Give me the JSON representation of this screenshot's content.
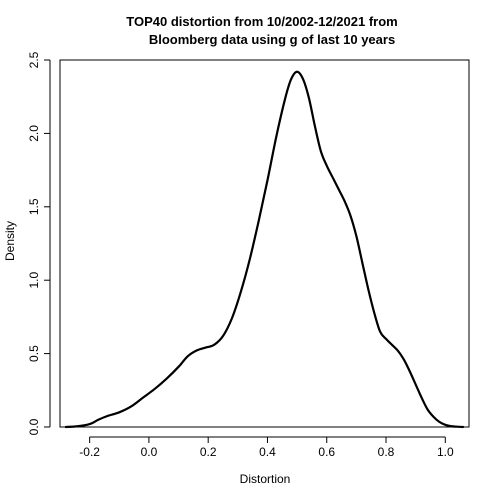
{
  "chart_data": {
    "type": "line",
    "title_lines": [
      "TOP40 distortion from 10/2002-12/2021 from",
      "Bloomberg data using g of last 10 years"
    ],
    "xlabel": "Distortion",
    "ylabel": "Density",
    "xlim": [
      -0.3,
      1.08
    ],
    "ylim": [
      0,
      2.5
    ],
    "x_ticks": [
      -0.2,
      0.0,
      0.2,
      0.4,
      0.6,
      0.8,
      1.0
    ],
    "x_tick_labels": [
      "-0.2",
      "0.0",
      "0.2",
      "0.4",
      "0.6",
      "0.8",
      "1.0"
    ],
    "y_ticks": [
      0.0,
      0.5,
      1.0,
      1.5,
      2.0,
      2.5
    ],
    "y_tick_labels": [
      "0.0",
      "0.5",
      "1.0",
      "1.5",
      "2.0",
      "2.5"
    ],
    "grid": false,
    "legend": "none",
    "line_color": "#000000",
    "series": [
      {
        "x": [
          -0.28,
          -0.24,
          -0.2,
          -0.17,
          -0.14,
          -0.1,
          -0.06,
          -0.02,
          0.02,
          0.06,
          0.1,
          0.13,
          0.16,
          0.19,
          0.22,
          0.25,
          0.28,
          0.31,
          0.34,
          0.37,
          0.4,
          0.43,
          0.46,
          0.48,
          0.5,
          0.52,
          0.54,
          0.56,
          0.58,
          0.6,
          0.62,
          0.64,
          0.66,
          0.68,
          0.7,
          0.72,
          0.74,
          0.76,
          0.78,
          0.8,
          0.82,
          0.84,
          0.86,
          0.88,
          0.9,
          0.92,
          0.94,
          0.96,
          0.98,
          1.0,
          1.02,
          1.04,
          1.06
        ],
        "y": [
          0.0,
          0.005,
          0.02,
          0.05,
          0.075,
          0.1,
          0.14,
          0.2,
          0.26,
          0.33,
          0.41,
          0.48,
          0.52,
          0.54,
          0.56,
          0.62,
          0.74,
          0.92,
          1.14,
          1.4,
          1.68,
          1.98,
          2.24,
          2.37,
          2.42,
          2.37,
          2.24,
          2.05,
          1.88,
          1.78,
          1.7,
          1.62,
          1.54,
          1.44,
          1.3,
          1.12,
          0.94,
          0.78,
          0.65,
          0.6,
          0.56,
          0.52,
          0.46,
          0.38,
          0.29,
          0.2,
          0.12,
          0.07,
          0.035,
          0.015,
          0.005,
          0.002,
          0.0
        ]
      }
    ]
  }
}
